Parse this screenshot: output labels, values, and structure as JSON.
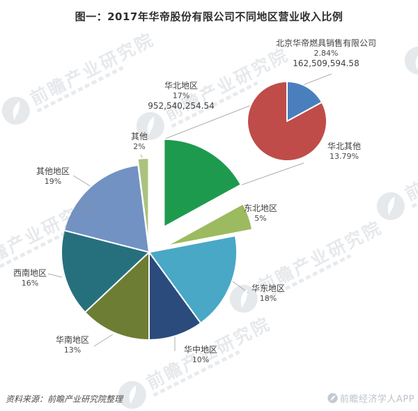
{
  "header": {
    "title": "图一：2017年华帝股份有限公司不同地区营业收入比例"
  },
  "footer": {
    "source": "资料来源：前瞻产业研究院整理",
    "app_text": "前瞻经济学人APP"
  },
  "watermark": {
    "text": "前瞻产业研究院"
  },
  "chart_data": {
    "type": "pie",
    "subtype": "pie-of-pie",
    "title": "图一：2017年华帝股份有限公司不同地区营业收入比例",
    "legend_position": "none",
    "grid": false,
    "main_pie": {
      "unit": "percent of total revenue",
      "slices": [
        {
          "label": "华北地区",
          "pct": 17,
          "pct_label": "17%",
          "value": "952,540,254.54",
          "color": "#1E9A4E",
          "exploded": true
        },
        {
          "label": "东北地区",
          "pct": 5,
          "pct_label": "5%",
          "color": "#9CBA5F",
          "exploded": true
        },
        {
          "label": "华东地区",
          "pct": 18,
          "pct_label": "18%",
          "color": "#48A8C6",
          "exploded": false
        },
        {
          "label": "华中地区",
          "pct": 10,
          "pct_label": "10%",
          "color": "#2A4B7C",
          "exploded": false
        },
        {
          "label": "华南地区",
          "pct": 13,
          "pct_label": "13%",
          "color": "#6D7D33",
          "exploded": false
        },
        {
          "label": "西南地区",
          "pct": 16,
          "pct_label": "16%",
          "color": "#26707E",
          "exploded": false
        },
        {
          "label": "其他地区",
          "pct": 19,
          "pct_label": "19%",
          "color": "#7292C3",
          "exploded": false
        },
        {
          "label": "其他",
          "pct": 2,
          "pct_label": "2%",
          "color": "#ABC27E",
          "exploded": true
        }
      ]
    },
    "secondary_pie": {
      "parent_slice": "华北地区",
      "slices": [
        {
          "label": "北京华帝燃具销售有限公司",
          "pct": 2.84,
          "pct_label": "2.84%",
          "value": "162,509,594.58",
          "color": "#4A7FBE"
        },
        {
          "label": "华北其他",
          "pct": 13.79,
          "pct_label": "13.79%",
          "color": "#BF4C49"
        }
      ]
    }
  }
}
